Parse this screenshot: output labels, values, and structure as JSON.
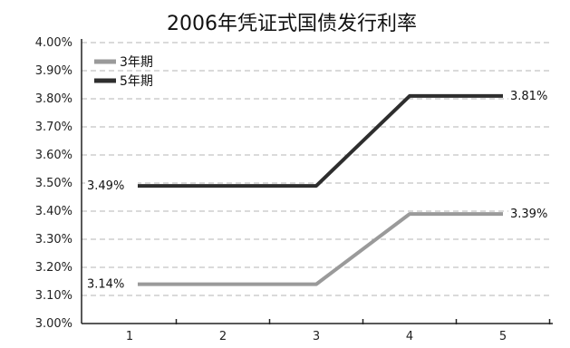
{
  "chart_data": {
    "type": "line",
    "title": "2006年凭证式国债发行利率",
    "categories": [
      "1",
      "2",
      "3",
      "4",
      "5"
    ],
    "y_ticks": [
      "3.00%",
      "3.10%",
      "3.20%",
      "3.30%",
      "3.40%",
      "3.50%",
      "3.60%",
      "3.70%",
      "3.80%",
      "3.90%",
      "4.00%"
    ],
    "ylim": [
      3.0,
      4.0
    ],
    "grid": true,
    "legend_position": "top-left",
    "series": [
      {
        "name": "3年期",
        "color": "#9a9a9a",
        "values": [
          3.14,
          3.14,
          3.14,
          3.39,
          3.39
        ],
        "labels": [
          "3.14%",
          "",
          "",
          "",
          "3.39%"
        ]
      },
      {
        "name": "5年期",
        "color": "#2e2e2e",
        "values": [
          3.49,
          3.49,
          3.49,
          3.81,
          3.81
        ],
        "labels": [
          "3.49%",
          "",
          "",
          "",
          "3.81%"
        ]
      }
    ]
  }
}
